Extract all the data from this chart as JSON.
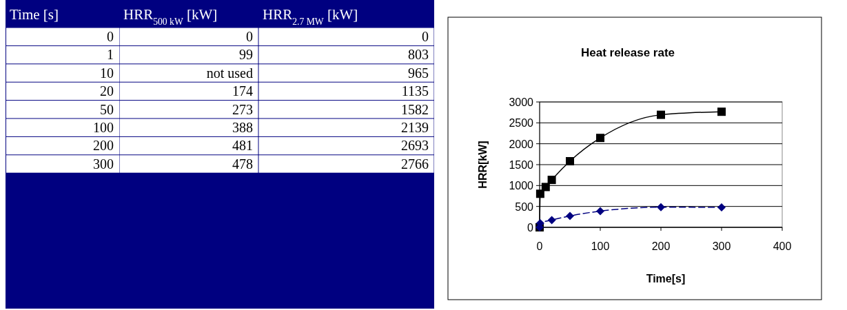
{
  "chart_data": [
    {
      "type": "other",
      "xlabel": "Time [s]",
      "categories": [
        "0",
        "1",
        "10",
        "20",
        "50",
        "100",
        "200",
        "300"
      ],
      "series": [
        {
          "name": "HRR$_{500 kW}$ [kW]",
          "values": [
            0,
            99,
            null,
            174,
            273,
            388,
            481,
            478
          ],
          "value_labels": [
            "0",
            "99",
            "not used",
            "174",
            "273",
            "388",
            "481",
            "478"
          ]
        },
        {
          "name": "HRR$_{2.7 MW}$ [kW]",
          "values": [
            0,
            803,
            965,
            1135,
            1582,
            2139,
            2693,
            2766
          ],
          "value_labels": [
            "0",
            "803",
            "965",
            "1135",
            "1582",
            "2139",
            "2693",
            "2766"
          ]
        }
      ]
    },
    {
      "type": "line",
      "title": "Heat release rate",
      "xlabel": "Time[s]",
      "ylabel": "HRR[kW]",
      "x": [
        0,
        1,
        10,
        20,
        50,
        100,
        200,
        300
      ],
      "series": [
        {
          "color": "#000080",
          "marker": "diamond",
          "line_style": "dashed",
          "values": [
            0,
            99,
            null,
            174,
            273,
            388,
            481,
            478
          ]
        },
        {
          "color": "#000000",
          "marker": "square",
          "line_style": "solid",
          "values": [
            0,
            803,
            965,
            1135,
            1582,
            2139,
            2693,
            2766
          ]
        }
      ],
      "xlim": [
        0,
        400
      ],
      "xticks": [
        0,
        100,
        200,
        300,
        400
      ],
      "ylim": [
        0,
        3000
      ],
      "yticks": [
        0,
        500,
        1000,
        1500,
        2000,
        2500,
        3000
      ],
      "grid": "y"
    }
  ]
}
